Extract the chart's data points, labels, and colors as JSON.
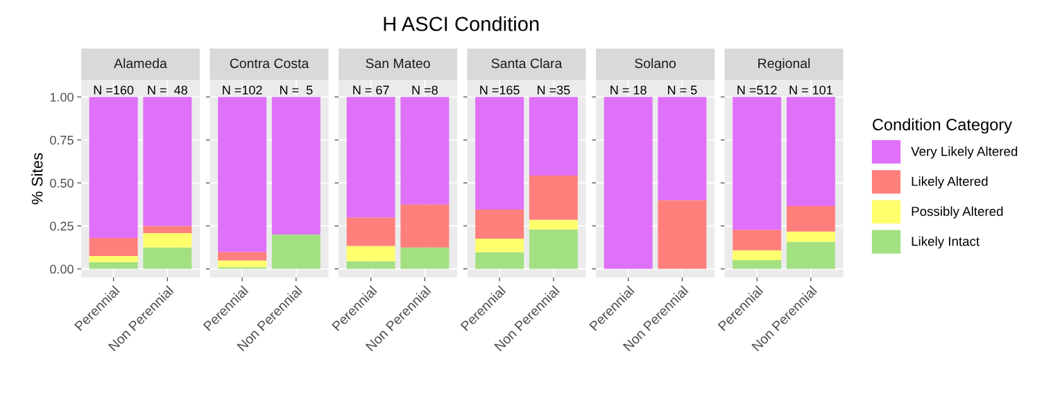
{
  "chart_data": [
    {
      "type": "bar",
      "stacked": true,
      "title": "Alameda",
      "ylabel": "% Sites",
      "categories": [
        "Perennial",
        "Non Perennial"
      ],
      "ylim": [
        -0.05,
        1.1
      ],
      "yticks": [
        {
          "value": 0,
          "label": "0.00"
        },
        {
          "value": 0.25,
          "label": "0.25"
        },
        {
          "value": 0.5,
          "label": "0.50"
        },
        {
          "value": 0.75,
          "label": "0.75"
        },
        {
          "value": 1,
          "label": "1.00"
        }
      ],
      "grid": true,
      "annotations": [
        "H ASCI Condition",
        {
          "text": "N =160",
          "x": "Perennial",
          "y": 1.0
        },
        {
          "text": "N =  48",
          "x": "Non Perennial",
          "y": 1.0
        }
      ],
      "series": [
        {
          "color": "#a3e081",
          "values": [
            0.04,
            0.125
          ]
        },
        {
          "color": "#ffff6e",
          "values": [
            0.035,
            0.083
          ]
        },
        {
          "color": "#ff7f7c",
          "values": [
            0.105,
            0.042
          ]
        },
        {
          "color": "#df70f8",
          "values": [
            0.82,
            0.75
          ]
        }
      ]
    },
    {
      "type": "bar",
      "stacked": true,
      "title": "Contra Costa",
      "categories": [
        "Perennial",
        "Non Perennial"
      ],
      "ylim": [
        -0.05,
        1.1
      ],
      "yticks": [
        {
          "value": 0,
          "label": null
        },
        {
          "value": 0.25,
          "label": null
        },
        {
          "value": 0.5,
          "label": null
        },
        {
          "value": 0.75,
          "label": null
        },
        {
          "value": 1,
          "label": null
        }
      ],
      "grid": true,
      "tick_labels": "x",
      "annotations": [
        {
          "text": "N =102",
          "x": "Perennial",
          "y": 1.0
        },
        {
          "text": "N =  5",
          "x": "Non Perennial",
          "y": 1.0
        }
      ],
      "series": [
        {
          "color": "#a3e081",
          "values": [
            0.01,
            0.2
          ]
        },
        {
          "color": "#ffff6e",
          "values": [
            0.039,
            0
          ]
        },
        {
          "color": "#ff7f7c",
          "values": [
            0.049,
            0
          ]
        },
        {
          "color": "#df70f8",
          "values": [
            0.902,
            0.8
          ]
        }
      ]
    },
    {
      "type": "bar",
      "stacked": true,
      "title": "San Mateo",
      "categories": [
        "Perennial",
        "Non Perennial"
      ],
      "ylim": [
        -0.05,
        1.1
      ],
      "yticks": [
        {
          "value": 0,
          "label": null
        },
        {
          "value": 0.25,
          "label": null
        },
        {
          "value": 0.5,
          "label": null
        },
        {
          "value": 0.75,
          "label": null
        },
        {
          "value": 1,
          "label": null
        }
      ],
      "grid": true,
      "tick_labels": "x",
      "annotations": [
        {
          "text": "N = 67",
          "x": "Perennial",
          "y": 1.0
        },
        {
          "text": "N =8",
          "x": "Non Perennial",
          "y": 1.0
        }
      ],
      "series": [
        {
          "color": "#a3e081",
          "values": [
            0.045,
            0.125
          ]
        },
        {
          "color": "#ffff6e",
          "values": [
            0.089,
            0
          ]
        },
        {
          "color": "#ff7f7c",
          "values": [
            0.165,
            0.25
          ]
        },
        {
          "color": "#df70f8",
          "values": [
            0.701,
            0.625
          ]
        }
      ]
    },
    {
      "type": "bar",
      "stacked": true,
      "title": "Santa Clara",
      "categories": [
        "Perennial",
        "Non Perennial"
      ],
      "ylim": [
        -0.05,
        1.1
      ],
      "yticks": [
        {
          "value": 0,
          "label": null
        },
        {
          "value": 0.25,
          "label": null
        },
        {
          "value": 0.5,
          "label": null
        },
        {
          "value": 0.75,
          "label": null
        },
        {
          "value": 1,
          "label": null
        }
      ],
      "grid": true,
      "tick_labels": "x",
      "annotations": [
        {
          "text": "N =165",
          "x": "Perennial",
          "y": 1.0
        },
        {
          "text": "N =35",
          "x": "Non Perennial",
          "y": 1.0
        }
      ],
      "series": [
        {
          "color": "#a3e081",
          "values": [
            0.097,
            0.229
          ]
        },
        {
          "color": "#ffff6e",
          "values": [
            0.079,
            0.057
          ]
        },
        {
          "color": "#ff7f7c",
          "values": [
            0.169,
            0.257
          ]
        },
        {
          "color": "#df70f8",
          "values": [
            0.655,
            0.457
          ]
        }
      ]
    },
    {
      "type": "bar",
      "stacked": true,
      "title": "Solano",
      "categories": [
        "Perennial",
        "Non Perennial"
      ],
      "ylim": [
        -0.05,
        1.1
      ],
      "yticks": [
        {
          "value": 0,
          "label": null
        },
        {
          "value": 0.25,
          "label": null
        },
        {
          "value": 0.5,
          "label": null
        },
        {
          "value": 0.75,
          "label": null
        },
        {
          "value": 1,
          "label": null
        }
      ],
      "grid": true,
      "tick_labels": "x",
      "annotations": [
        {
          "text": "N = 18",
          "x": "Perennial",
          "y": 1.0
        },
        {
          "text": "N = 5",
          "x": "Non Perennial",
          "y": 1.0
        }
      ],
      "series": [
        {
          "color": "#a3e081",
          "values": [
            0,
            0
          ]
        },
        {
          "color": "#ffff6e",
          "values": [
            0,
            0
          ]
        },
        {
          "color": "#ff7f7c",
          "values": [
            0,
            0.4
          ]
        },
        {
          "color": "#df70f8",
          "values": [
            1.0,
            0.6
          ]
        }
      ]
    },
    {
      "type": "bar",
      "stacked": true,
      "title": "Regional",
      "categories": [
        "Perennial",
        "Non Perennial"
      ],
      "ylim": [
        -0.05,
        1.1
      ],
      "yticks": [
        {
          "value": 0,
          "label": null
        },
        {
          "value": 0.25,
          "label": null
        },
        {
          "value": 0.5,
          "label": null
        },
        {
          "value": 0.75,
          "label": null
        },
        {
          "value": 1,
          "label": null
        }
      ],
      "grid": true,
      "legend": "right",
      "legend_title": "Condition Category",
      "tick_labels": "x",
      "annotations": [
        {
          "text": "N =512",
          "x": "Perennial",
          "y": 1.0
        },
        {
          "text": "N = 101",
          "x": "Non Perennial",
          "y": 1.0
        }
      ],
      "series": [
        {
          "name": "Likely Intact",
          "color": "#a3e081",
          "values": [
            0.051,
            0.158
          ]
        },
        {
          "name": "Possibly Altered",
          "color": "#ffff6e",
          "values": [
            0.057,
            0.059
          ]
        },
        {
          "name": "Likely Altered",
          "color": "#ff7f7c",
          "values": [
            0.119,
            0.149
          ]
        },
        {
          "name": "Very Likely Altered",
          "color": "#df70f8",
          "values": [
            0.773,
            0.634
          ]
        }
      ]
    }
  ]
}
